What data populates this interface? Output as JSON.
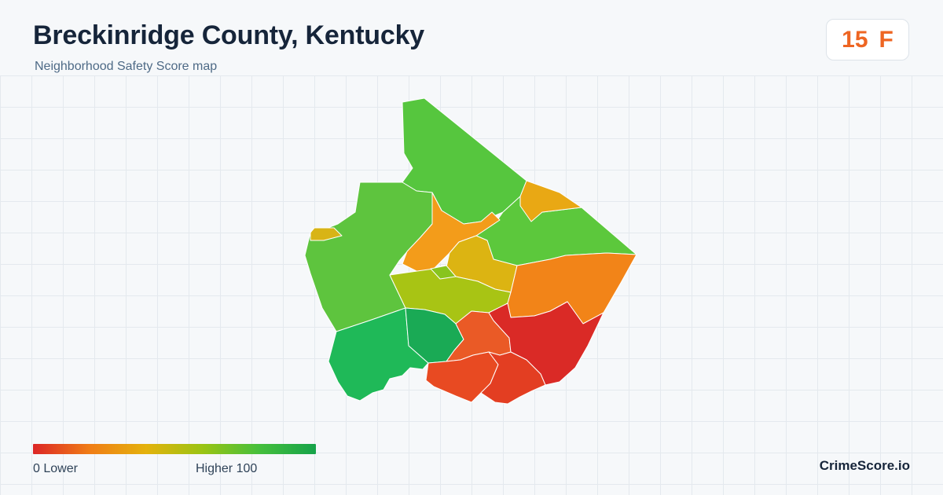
{
  "header": {
    "title": "Breckinridge County, Kentucky",
    "subtitle": "Neighborhood Safety Score map"
  },
  "score_badge": {
    "score": "15",
    "grade": "F",
    "color": "#ee6522"
  },
  "map": {
    "regions": [
      {
        "id": "north",
        "color": "#56c63e"
      },
      {
        "id": "west",
        "color": "#5ec43e"
      },
      {
        "id": "east-center",
        "color": "#5cc83c"
      },
      {
        "id": "center-orange",
        "color": "#f39c1a"
      },
      {
        "id": "ne-small",
        "color": "#e9a814"
      },
      {
        "id": "nw-small",
        "color": "#d8b416"
      },
      {
        "id": "center-yellow",
        "color": "#dcb412"
      },
      {
        "id": "center-lime",
        "color": "#a8c414"
      },
      {
        "id": "center-green-sliver",
        "color": "#88c41e"
      },
      {
        "id": "east-orange",
        "color": "#f28418"
      },
      {
        "id": "sw-green",
        "color": "#1fb958"
      },
      {
        "id": "s-green",
        "color": "#1aaa55"
      },
      {
        "id": "south-orange-red",
        "color": "#ea5a26"
      },
      {
        "id": "se-red",
        "color": "#da2a26"
      },
      {
        "id": "south-red-west",
        "color": "#e84a22"
      },
      {
        "id": "south-red-east",
        "color": "#e33e22"
      }
    ]
  },
  "legend": {
    "low_label": "0  Lower",
    "high_label": "Higher  100",
    "gradient_colors": [
      "#dc2626",
      "#f07d16",
      "#e4b20c",
      "#9ac414",
      "#45bf3c",
      "#16a34a"
    ]
  },
  "brand": "CrimeScore.io"
}
